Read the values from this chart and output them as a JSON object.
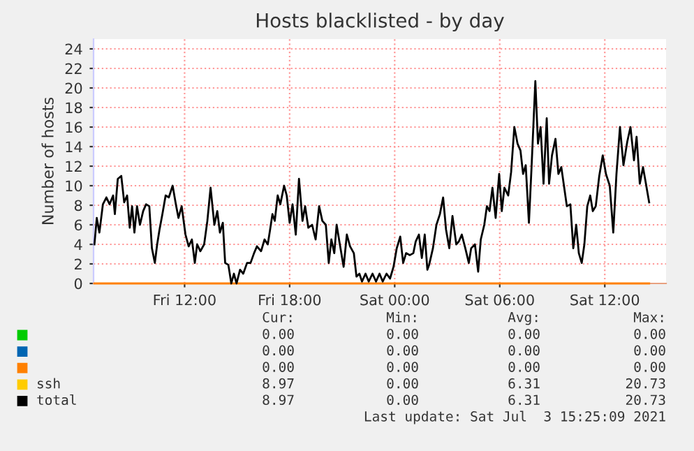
{
  "chart_data": {
    "type": "line",
    "title": "Hosts blacklisted - by day",
    "ylabel": "Number of hosts",
    "xlim": [
      "2021-07-02T06:48",
      "2021-07-03T15:30"
    ],
    "ylim": [
      0,
      25
    ],
    "xticks": [
      {
        "value": "2021-07-02T12:00",
        "label": "Fri 12:00"
      },
      {
        "value": "2021-07-02T18:00",
        "label": "Fri 18:00"
      },
      {
        "value": "2021-07-03T00:00",
        "label": "Sat 00:00"
      },
      {
        "value": "2021-07-03T06:00",
        "label": "Sat 06:00"
      },
      {
        "value": "2021-07-03T12:00",
        "label": "Sat 12:00"
      }
    ],
    "yticks": [
      0,
      2,
      4,
      6,
      8,
      10,
      12,
      14,
      16,
      18,
      20,
      22,
      24
    ],
    "grid": true,
    "legend": "bottom",
    "annotations": [
      "Cur:",
      "Min:",
      "Avg:",
      "Max:",
      "0.00",
      "0.00",
      "0.00",
      "0.00",
      "0.00",
      "0.00",
      "0.00",
      "0.00",
      "0.00",
      "0.00",
      "0.00",
      "0.00",
      "8.97",
      "0.00",
      "6.31",
      "20.73",
      "8.97",
      "0.00",
      "6.31",
      "20.73",
      "Last update: Sat Jul  3 15:25:09 2021"
    ],
    "x": [
      "2021-07-02T06:51",
      "2021-07-02T06:59",
      "2021-07-02T07:08",
      "2021-07-02T07:20",
      "2021-07-02T07:32",
      "2021-07-02T07:43",
      "2021-07-02T07:55",
      "2021-07-02T08:01",
      "2021-07-02T08:11",
      "2021-07-02T08:23",
      "2021-07-02T08:33",
      "2021-07-02T08:43",
      "2021-07-02T08:52",
      "2021-07-02T09:00",
      "2021-07-02T09:08",
      "2021-07-02T09:17",
      "2021-07-02T09:27",
      "2021-07-02T09:38",
      "2021-07-02T09:48",
      "2021-07-02T09:59",
      "2021-07-02T10:08",
      "2021-07-02T10:18",
      "2021-07-02T10:26",
      "2021-07-02T10:34",
      "2021-07-02T10:44",
      "2021-07-02T10:55",
      "2021-07-02T11:06",
      "2021-07-02T11:19",
      "2021-07-02T11:30",
      "2021-07-02T11:39",
      "2021-07-02T11:50",
      "2021-07-02T12:03",
      "2021-07-02T12:14",
      "2021-07-02T12:25",
      "2021-07-02T12:35",
      "2021-07-02T12:43",
      "2021-07-02T12:54",
      "2021-07-02T13:07",
      "2021-07-02T13:18",
      "2021-07-02T13:29",
      "2021-07-02T13:42",
      "2021-07-02T13:52",
      "2021-07-02T14:01",
      "2021-07-02T14:11",
      "2021-07-02T14:19",
      "2021-07-02T14:30",
      "2021-07-02T14:40",
      "2021-07-02T14:49",
      "2021-07-02T14:58",
      "2021-07-02T15:10",
      "2021-07-02T15:21",
      "2021-07-02T15:34",
      "2021-07-02T15:46",
      "2021-07-02T15:58",
      "2021-07-02T16:08",
      "2021-07-02T16:22",
      "2021-07-02T16:34",
      "2021-07-02T16:45",
      "2021-07-02T16:53",
      "2021-07-02T17:01",
      "2021-07-02T17:09",
      "2021-07-02T17:19",
      "2021-07-02T17:28",
      "2021-07-02T17:41",
      "2021-07-02T17:50",
      "2021-07-02T18:00",
      "2021-07-02T18:10",
      "2021-07-02T18:21",
      "2021-07-02T18:32",
      "2021-07-02T18:44",
      "2021-07-02T18:53",
      "2021-07-02T19:04",
      "2021-07-02T19:17",
      "2021-07-02T19:29",
      "2021-07-02T19:41",
      "2021-07-02T19:52",
      "2021-07-02T20:04",
      "2021-07-02T20:14",
      "2021-07-02T20:23",
      "2021-07-02T20:33",
      "2021-07-02T20:41",
      "2021-07-02T20:52",
      "2021-07-02T21:05",
      "2021-07-02T21:16",
      "2021-07-02T21:27",
      "2021-07-02T21:40",
      "2021-07-02T21:49",
      "2021-07-02T21:59",
      "2021-07-02T22:08",
      "2021-07-02T22:20",
      "2021-07-02T22:31",
      "2021-07-02T22:44",
      "2021-07-02T22:56",
      "2021-07-02T23:08",
      "2021-07-02T23:19",
      "2021-07-02T23:32",
      "2021-07-02T23:44",
      "2021-07-02T23:56",
      "2021-07-03T00:07",
      "2021-07-03T00:19",
      "2021-07-03T00:29",
      "2021-07-03T00:39",
      "2021-07-03T00:52",
      "2021-07-03T01:04",
      "2021-07-03T01:12",
      "2021-07-03T01:23",
      "2021-07-03T01:33",
      "2021-07-03T01:43",
      "2021-07-03T01:52",
      "2021-07-03T01:58",
      "2021-07-03T02:11",
      "2021-07-03T02:23",
      "2021-07-03T02:35",
      "2021-07-03T02:46",
      "2021-07-03T02:56",
      "2021-07-03T03:07",
      "2021-07-03T03:18",
      "2021-07-03T03:31",
      "2021-07-03T03:40",
      "2021-07-03T03:50",
      "2021-07-03T04:02",
      "2021-07-03T04:14",
      "2021-07-03T04:22",
      "2021-07-03T04:35",
      "2021-07-03T04:46",
      "2021-07-03T04:55",
      "2021-07-03T05:07",
      "2021-07-03T05:16",
      "2021-07-03T05:25",
      "2021-07-03T05:35",
      "2021-07-03T05:46",
      "2021-07-03T05:58",
      "2021-07-03T06:07",
      "2021-07-03T06:16",
      "2021-07-03T06:29",
      "2021-07-03T06:39",
      "2021-07-03T06:50",
      "2021-07-03T07:01",
      "2021-07-03T07:11",
      "2021-07-03T07:20",
      "2021-07-03T07:29",
      "2021-07-03T07:40",
      "2021-07-03T07:49",
      "2021-07-03T08:02",
      "2021-07-03T08:11",
      "2021-07-03T08:20",
      "2021-07-03T08:30",
      "2021-07-03T08:41",
      "2021-07-03T08:49",
      "2021-07-03T08:59",
      "2021-07-03T09:11",
      "2021-07-03T09:21",
      "2021-07-03T09:31",
      "2021-07-03T09:40",
      "2021-07-03T09:50",
      "2021-07-03T10:02",
      "2021-07-03T10:12",
      "2021-07-03T10:22",
      "2021-07-03T10:31",
      "2021-07-03T10:41",
      "2021-07-03T10:50",
      "2021-07-03T11:00",
      "2021-07-03T11:10",
      "2021-07-03T11:19",
      "2021-07-03T11:29",
      "2021-07-03T11:41",
      "2021-07-03T11:53",
      "2021-07-03T12:04",
      "2021-07-03T12:17",
      "2021-07-03T12:29",
      "2021-07-03T12:40",
      "2021-07-03T12:52",
      "2021-07-03T13:04",
      "2021-07-03T13:17",
      "2021-07-03T13:28",
      "2021-07-03T13:40",
      "2021-07-03T13:49",
      "2021-07-03T14:00",
      "2021-07-03T14:11",
      "2021-07-03T14:21",
      "2021-07-03T14:32"
    ],
    "series": [
      {
        "color": "#00cc00",
        "values": [
          null,
          null,
          null,
          null,
          null,
          null,
          null,
          null,
          null,
          null,
          null,
          null,
          null,
          null,
          null,
          null,
          null,
          null,
          null,
          null,
          null,
          null,
          null,
          null,
          null,
          null,
          null,
          null,
          null,
          null,
          null,
          null,
          null,
          null,
          null,
          null,
          null,
          null,
          null,
          null,
          null,
          null,
          null,
          null,
          null,
          null,
          null,
          null,
          null,
          null,
          null,
          null,
          null,
          null,
          null,
          null,
          null,
          null,
          null,
          null,
          null,
          null,
          null,
          null,
          null,
          null,
          null,
          null,
          null,
          null,
          null,
          null,
          null,
          null,
          null,
          null,
          null,
          null,
          null,
          null,
          null,
          null,
          null,
          null,
          null,
          null,
          null,
          null,
          null,
          null,
          null,
          null,
          null,
          null,
          null,
          null,
          null,
          null,
          null,
          null,
          null,
          null,
          null,
          null,
          null,
          null,
          null,
          null,
          null,
          null,
          null,
          null,
          null,
          null,
          null,
          null,
          null,
          null,
          null,
          null,
          null,
          null,
          null,
          null,
          null,
          null,
          null,
          null,
          null,
          null,
          null,
          null,
          null,
          null,
          null,
          null,
          null,
          null,
          null,
          null,
          null,
          null,
          null,
          null,
          null,
          null,
          null,
          null,
          null,
          null,
          null,
          null,
          null,
          null,
          null,
          null,
          null,
          null,
          null,
          null,
          null,
          null,
          null,
          null,
          null,
          null,
          null,
          null,
          null,
          null,
          null,
          null,
          null,
          null,
          null,
          null,
          null,
          null,
          null,
          null,
          null
        ]
      },
      {
        "color": "#0066b3",
        "values": [
          null,
          null,
          null,
          null,
          null,
          null,
          null,
          null,
          null,
          null,
          null,
          null,
          null,
          null,
          null,
          null,
          null,
          null,
          null,
          null,
          null,
          null,
          null,
          null,
          null,
          null,
          null,
          null,
          null,
          null,
          null,
          null,
          null,
          null,
          null,
          null,
          null,
          null,
          null,
          null,
          null,
          null,
          null,
          null,
          null,
          null,
          null,
          null,
          null,
          null,
          null,
          null,
          null,
          null,
          null,
          null,
          null,
          null,
          null,
          null,
          null,
          null,
          null,
          null,
          null,
          null,
          null,
          null,
          null,
          null,
          null,
          null,
          null,
          null,
          null,
          null,
          null,
          null,
          null,
          null,
          null,
          null,
          null,
          null,
          null,
          null,
          null,
          null,
          null,
          null,
          null,
          null,
          null,
          null,
          null,
          null,
          null,
          null,
          null,
          null,
          null,
          null,
          null,
          null,
          null,
          null,
          null,
          null,
          null,
          null,
          null,
          null,
          null,
          null,
          null,
          null,
          null,
          null,
          null,
          null,
          null,
          null,
          null,
          null,
          null,
          null,
          null,
          null,
          null,
          null,
          null,
          null,
          null,
          null,
          null,
          null,
          null,
          null,
          null,
          null,
          null,
          null,
          null,
          null,
          null,
          null,
          null,
          null,
          null,
          null,
          null,
          null,
          null,
          null,
          null,
          null,
          null,
          null,
          null,
          null,
          null,
          null,
          null,
          null,
          null,
          null,
          null,
          null,
          null,
          null,
          null,
          null,
          null,
          null,
          null,
          null,
          null,
          null,
          null,
          null,
          null
        ]
      },
      {
        "color": "#ff8000",
        "x": [
          "2021-07-02T06:51",
          "2021-07-03T14:32"
        ],
        "values": [
          0,
          0
        ]
      },
      {
        "name": "ssh",
        "color": "#ffcc00",
        "values": [
          null,
          null,
          null,
          null,
          null,
          null,
          null,
          null,
          null,
          null,
          null,
          null,
          null,
          null,
          null,
          null,
          null,
          null,
          null,
          null,
          null,
          null,
          null,
          null,
          null,
          null,
          null,
          null,
          null,
          null,
          null,
          null,
          null,
          null,
          null,
          null,
          null,
          null,
          null,
          null,
          null,
          null,
          null,
          null,
          null,
          null,
          null,
          null,
          null,
          null,
          null,
          null,
          null,
          null,
          null,
          null,
          null,
          null,
          null,
          null,
          null,
          null,
          null,
          null,
          null,
          null,
          null,
          null,
          null,
          null,
          null,
          null,
          null,
          null,
          null,
          null,
          null,
          null,
          null,
          null,
          null,
          null,
          null,
          null,
          null,
          null,
          null,
          null,
          null,
          null,
          null,
          null,
          null,
          null,
          null,
          null,
          null,
          null,
          null,
          null,
          null,
          null,
          null,
          null,
          null,
          null,
          null,
          null,
          null,
          null,
          null,
          null,
          null,
          null,
          null,
          null,
          null,
          null,
          null,
          null,
          null,
          null,
          null,
          null,
          null,
          null,
          null,
          null,
          null,
          null,
          null,
          null,
          null,
          null,
          null,
          null,
          null,
          null,
          null,
          null,
          null,
          null,
          null,
          null,
          null,
          null,
          null,
          null,
          null,
          null,
          null,
          null,
          null,
          null,
          null,
          null,
          null,
          null,
          null,
          null,
          null,
          null,
          null,
          null,
          null,
          null,
          null,
          null,
          null,
          null,
          null,
          null,
          null,
          null,
          null,
          null,
          null,
          null,
          null,
          null,
          null
        ]
      },
      {
        "name": "total",
        "color": "#000000",
        "values": [
          4.0,
          6.7,
          5.2,
          8.1,
          8.8,
          8.1,
          9,
          7.1,
          10.7,
          11,
          8.3,
          9,
          5.7,
          7.9,
          5.2,
          7.9,
          6,
          7.4,
          8.1,
          7.9,
          3.6,
          2.1,
          4,
          5.5,
          7.1,
          9,
          8.8,
          10,
          8.1,
          6.7,
          7.9,
          5,
          3.8,
          4.5,
          2.1,
          4,
          3.3,
          4,
          6.4,
          9.8,
          6,
          7.4,
          5.2,
          6.2,
          2.1,
          1.9,
          0,
          1,
          0,
          1.4,
          1,
          2.1,
          2.1,
          3.1,
          3.8,
          3.3,
          4.5,
          4,
          5.5,
          7.1,
          6.4,
          9,
          8.1,
          10,
          9,
          6.2,
          8.1,
          5,
          10.7,
          6.4,
          7.9,
          5.7,
          6,
          4.5,
          7.9,
          6.4,
          6,
          2.1,
          4.5,
          3.1,
          6,
          4,
          1.7,
          5,
          3.8,
          3.1,
          0.7,
          1,
          0.2,
          1,
          0.2,
          1,
          0.2,
          1,
          0.2,
          1,
          0.5,
          1.7,
          3.6,
          4.8,
          2.1,
          3.1,
          2.9,
          3.1,
          4.3,
          5,
          2.6,
          5,
          1.4,
          1.9,
          3.6,
          6,
          7.1,
          8.8,
          5.5,
          3.6,
          6.9,
          4,
          4.3,
          5,
          3.6,
          2.1,
          3.6,
          4,
          1.2,
          4.5,
          6,
          7.9,
          7.4,
          9.8,
          6.7,
          11.2,
          7.4,
          9.8,
          9,
          11.4,
          16,
          14.3,
          13.6,
          11.2,
          12.1,
          6.2,
          11.9,
          20.7,
          14.3,
          16,
          10.2,
          16.9,
          10.2,
          13.1,
          14.8,
          11.2,
          11.9,
          10,
          7.9,
          8.1,
          3.6,
          6,
          3.1,
          2.1,
          4,
          7.9,
          9,
          7.4,
          7.9,
          11,
          13.1,
          11.2,
          10,
          5.2,
          11.2,
          16,
          12.1,
          14.5,
          16,
          12.6,
          15,
          10.2,
          11.9,
          10.2,
          8.3
        ]
      }
    ]
  }
}
